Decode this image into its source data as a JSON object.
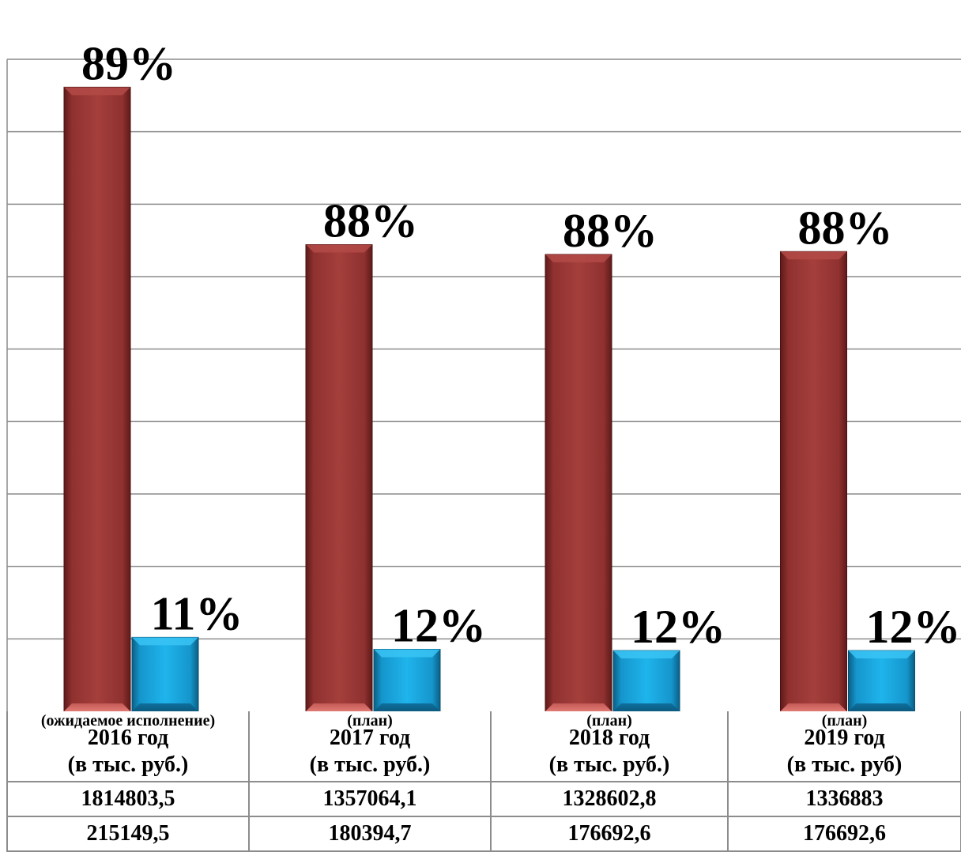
{
  "chart_data": {
    "type": "bar",
    "categories": [
      {
        "year": "2016 год",
        "unit": "(в тыс. руб.)",
        "note": "(ожидаемое исполнение)"
      },
      {
        "year": "2017 год",
        "unit": "(в тыс. руб.)",
        "note": "(план)"
      },
      {
        "year": "2018 год",
        "unit": "(в тыс. руб.)",
        "note": "(план)"
      },
      {
        "year": "2019 год",
        "unit": "(в тыс. руб)",
        "note": "(план)"
      }
    ],
    "series": [
      {
        "color": "#9e3a38",
        "values": [
          1814803.5,
          1357064.1,
          1328602.8,
          1336883
        ],
        "value_labels": [
          "1814803,5",
          "1357064,1",
          "1328602,8",
          "1336883"
        ],
        "data_labels": [
          "89%",
          "88%",
          "88%",
          "88%"
        ]
      },
      {
        "color": "#1ab0e8",
        "values": [
          215149.5,
          180394.7,
          176692.6,
          176692.6
        ],
        "value_labels": [
          "215149,5",
          "180394,7",
          "176692,6",
          "176692,6"
        ],
        "data_labels": [
          "11%",
          "12%",
          "12%",
          "12%"
        ]
      }
    ],
    "ylim": [
      0,
      2000000
    ],
    "grid": true,
    "legend": "none",
    "title": "",
    "xlabel": "",
    "ylabel": ""
  }
}
